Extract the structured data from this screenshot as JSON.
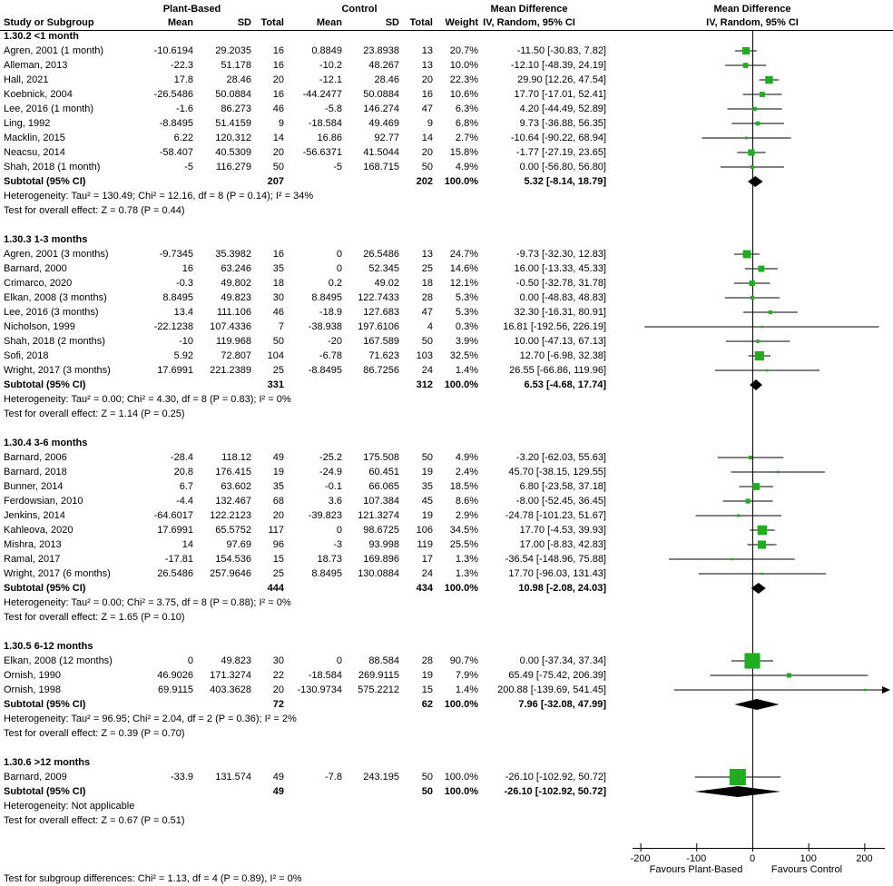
{
  "header": {
    "study_col": "Study or Subgroup",
    "group1_label": "Plant-Based",
    "group2_label": "Control",
    "col_mean": "Mean",
    "col_sd": "SD",
    "col_total": "Total",
    "col_weight": "Weight",
    "md_line1": "Mean Difference",
    "md_line2": "IV, Random, 95% CI",
    "plot_line1": "Mean Difference",
    "plot_line2": "IV, Random, 95% CI"
  },
  "axis": {
    "ticks": [
      -200,
      -100,
      0,
      100,
      200
    ],
    "favours_left": "Favours Plant-Based",
    "favours_right": "Favours Control"
  },
  "footer": {
    "subgroup_test": "Test for subgroup differences: Chi² = 1.13, df = 4 (P = 0.89), I² = 0%"
  },
  "colors": {
    "marker_green": "#21ac21",
    "diamond_black": "#000000",
    "line_black": "#000000"
  },
  "chart_data": {
    "type": "forest",
    "effect_measure": "Mean Difference, IV, Random, 95% CI",
    "x_ticks": [
      -200,
      -100,
      0,
      100,
      200
    ],
    "groups": [
      {
        "title": "1.30.2 <1 month",
        "rows": [
          {
            "study": "Agren, 2001 (1 month)",
            "pb_mean": "-10.6194",
            "pb_sd": "29.2035",
            "pb_total": 16,
            "c_mean": "0.8849",
            "c_sd": "23.8938",
            "c_total": 13,
            "weight": 20.7,
            "md": -11.5,
            "lo": -30.83,
            "hi": 7.82
          },
          {
            "study": "Alleman, 2013",
            "pb_mean": "-22.3",
            "pb_sd": "51.178",
            "pb_total": 16,
            "c_mean": "-10.2",
            "c_sd": "48.267",
            "c_total": 13,
            "weight": 10.0,
            "md": -12.1,
            "lo": -48.39,
            "hi": 24.19
          },
          {
            "study": "Hall, 2021",
            "pb_mean": "17.8",
            "pb_sd": "28.46",
            "pb_total": 20,
            "c_mean": "-12.1",
            "c_sd": "28.46",
            "c_total": 20,
            "weight": 22.3,
            "md": 29.9,
            "lo": 12.26,
            "hi": 47.54
          },
          {
            "study": "Koebnick, 2004",
            "pb_mean": "-26.5486",
            "pb_sd": "50.0884",
            "pb_total": 16,
            "c_mean": "-44.2477",
            "c_sd": "50.0884",
            "c_total": 16,
            "weight": 10.6,
            "md": 17.7,
            "lo": -17.01,
            "hi": 52.41
          },
          {
            "study": "Lee, 2016 (1 month)",
            "pb_mean": "-1.6",
            "pb_sd": "86.273",
            "pb_total": 46,
            "c_mean": "-5.8",
            "c_sd": "146.274",
            "c_total": 47,
            "weight": 6.3,
            "md": 4.2,
            "lo": -44.49,
            "hi": 52.89
          },
          {
            "study": "Ling, 1992",
            "pb_mean": "-8.8495",
            "pb_sd": "51.4159",
            "pb_total": 9,
            "c_mean": "-18.584",
            "c_sd": "49.469",
            "c_total": 9,
            "weight": 6.8,
            "md": 9.73,
            "lo": -36.88,
            "hi": 56.35
          },
          {
            "study": "Macklin, 2015",
            "pb_mean": "6.22",
            "pb_sd": "120.312",
            "pb_total": 14,
            "c_mean": "16.86",
            "c_sd": "92.77",
            "c_total": 14,
            "weight": 2.7,
            "md": -10.64,
            "lo": -90.22,
            "hi": 68.94
          },
          {
            "study": "Neacsu, 2014",
            "pb_mean": "-58.407",
            "pb_sd": "40.5309",
            "pb_total": 20,
            "c_mean": "-56.6371",
            "c_sd": "41.5044",
            "c_total": 20,
            "weight": 15.8,
            "md": -1.77,
            "lo": -27.19,
            "hi": 23.65
          },
          {
            "study": "Shah, 2018 (1 month)",
            "pb_mean": "-5",
            "pb_sd": "116.279",
            "pb_total": 50,
            "c_mean": "-5",
            "c_sd": "168.715",
            "c_total": 50,
            "weight": 4.9,
            "md": 0.0,
            "lo": -56.8,
            "hi": 56.8
          }
        ],
        "subtotal": {
          "label": "Subtotal (95% CI)",
          "pb_total": 207,
          "c_total": 202,
          "weight": 100.0,
          "md": 5.32,
          "lo": -8.14,
          "hi": 18.79
        },
        "heterogeneity": "Heterogeneity: Tau² = 130.49; Chi² = 12.16, df = 8 (P = 0.14); I² = 34%",
        "overall_test": "Test for overall effect: Z = 0.78 (P = 0.44)"
      },
      {
        "title": "1.30.3 1-3 months",
        "rows": [
          {
            "study": "Agren, 2001 (3 months)",
            "pb_mean": "-9.7345",
            "pb_sd": "35.3982",
            "pb_total": 16,
            "c_mean": "0",
            "c_sd": "26.5486",
            "c_total": 13,
            "weight": 24.7,
            "md": -9.73,
            "lo": -32.3,
            "hi": 12.83
          },
          {
            "study": "Barnard, 2000",
            "pb_mean": "16",
            "pb_sd": "63.246",
            "pb_total": 35,
            "c_mean": "0",
            "c_sd": "52.345",
            "c_total": 25,
            "weight": 14.6,
            "md": 16.0,
            "lo": -13.33,
            "hi": 45.33
          },
          {
            "study": "Crimarco, 2020",
            "pb_mean": "-0.3",
            "pb_sd": "49.802",
            "pb_total": 18,
            "c_mean": "0.2",
            "c_sd": "49.02",
            "c_total": 18,
            "weight": 12.1,
            "md": -0.5,
            "lo": -32.78,
            "hi": 31.78
          },
          {
            "study": "Elkan, 2008 (3 months)",
            "pb_mean": "8.8495",
            "pb_sd": "49.823",
            "pb_total": 30,
            "c_mean": "8.8495",
            "c_sd": "122.7433",
            "c_total": 28,
            "weight": 5.3,
            "md": 0.0,
            "lo": -48.83,
            "hi": 48.83
          },
          {
            "study": "Lee, 2016 (3 months)",
            "pb_mean": "13.4",
            "pb_sd": "111.106",
            "pb_total": 46,
            "c_mean": "-18.9",
            "c_sd": "127.683",
            "c_total": 47,
            "weight": 5.3,
            "md": 32.3,
            "lo": -16.31,
            "hi": 80.91
          },
          {
            "study": "Nicholson, 1999",
            "pb_mean": "-22.1238",
            "pb_sd": "107.4336",
            "pb_total": 7,
            "c_mean": "-38.938",
            "c_sd": "197.6106",
            "c_total": 4,
            "weight": 0.3,
            "md": 16.81,
            "lo": -192.56,
            "hi": 226.19
          },
          {
            "study": "Shah, 2018 (2 months)",
            "pb_mean": "-10",
            "pb_sd": "119.968",
            "pb_total": 50,
            "c_mean": "-20",
            "c_sd": "167.589",
            "c_total": 50,
            "weight": 3.9,
            "md": 10.0,
            "lo": -47.13,
            "hi": 67.13
          },
          {
            "study": "Sofi, 2018",
            "pb_mean": "5.92",
            "pb_sd": "72.807",
            "pb_total": 104,
            "c_mean": "-6.78",
            "c_sd": "71.623",
            "c_total": 103,
            "weight": 32.5,
            "md": 12.7,
            "lo": -6.98,
            "hi": 32.38
          },
          {
            "study": "Wright, 2017 (3 months)",
            "pb_mean": "17.6991",
            "pb_sd": "221.2389",
            "pb_total": 25,
            "c_mean": "-8.8495",
            "c_sd": "86.7256",
            "c_total": 24,
            "weight": 1.4,
            "md": 26.55,
            "lo": -66.86,
            "hi": 119.96
          }
        ],
        "subtotal": {
          "label": "Subtotal (95% CI)",
          "pb_total": 331,
          "c_total": 312,
          "weight": 100.0,
          "md": 6.53,
          "lo": -4.68,
          "hi": 17.74
        },
        "heterogeneity": "Heterogeneity: Tau² = 0.00; Chi² = 4.30, df = 8 (P = 0.83); I² = 0%",
        "overall_test": "Test for overall effect: Z = 1.14 (P = 0.25)"
      },
      {
        "title": "1.30.4 3-6 months",
        "rows": [
          {
            "study": "Barnard, 2006",
            "pb_mean": "-28.4",
            "pb_sd": "118.12",
            "pb_total": 49,
            "c_mean": "-25.2",
            "c_sd": "175.508",
            "c_total": 50,
            "weight": 4.9,
            "md": -3.2,
            "lo": -62.03,
            "hi": 55.63
          },
          {
            "study": "Barnard, 2018",
            "pb_mean": "20.8",
            "pb_sd": "176.415",
            "pb_total": 19,
            "c_mean": "-24.9",
            "c_sd": "60.451",
            "c_total": 19,
            "weight": 2.4,
            "md": 45.7,
            "lo": -38.15,
            "hi": 129.55
          },
          {
            "study": "Bunner, 2014",
            "pb_mean": "6.7",
            "pb_sd": "63.602",
            "pb_total": 35,
            "c_mean": "-0.1",
            "c_sd": "66.065",
            "c_total": 35,
            "weight": 18.5,
            "md": 6.8,
            "lo": -23.58,
            "hi": 37.18
          },
          {
            "study": "Ferdowsian, 2010",
            "pb_mean": "-4.4",
            "pb_sd": "132.467",
            "pb_total": 68,
            "c_mean": "3.6",
            "c_sd": "107.384",
            "c_total": 45,
            "weight": 8.6,
            "md": -8.0,
            "lo": -52.45,
            "hi": 36.45
          },
          {
            "study": "Jenkins, 2014",
            "pb_mean": "-64.6017",
            "pb_sd": "122.2123",
            "pb_total": 20,
            "c_mean": "-39.823",
            "c_sd": "121.3274",
            "c_total": 19,
            "weight": 2.9,
            "md": -24.78,
            "lo": -101.23,
            "hi": 51.67
          },
          {
            "study": "Kahleova, 2020",
            "pb_mean": "17.6991",
            "pb_sd": "65.5752",
            "pb_total": 117,
            "c_mean": "0",
            "c_sd": "98.6725",
            "c_total": 106,
            "weight": 34.5,
            "md": 17.7,
            "lo": -4.53,
            "hi": 39.93
          },
          {
            "study": "Mishra, 2013",
            "pb_mean": "14",
            "pb_sd": "97.69",
            "pb_total": 96,
            "c_mean": "-3",
            "c_sd": "93.998",
            "c_total": 119,
            "weight": 25.5,
            "md": 17.0,
            "lo": -8.83,
            "hi": 42.83
          },
          {
            "study": "Ramal, 2017",
            "pb_mean": "-17.81",
            "pb_sd": "154.536",
            "pb_total": 15,
            "c_mean": "18.73",
            "c_sd": "169.896",
            "c_total": 17,
            "weight": 1.3,
            "md": -36.54,
            "lo": -148.96,
            "hi": 75.88
          },
          {
            "study": "Wright, 2017 (6 months)",
            "pb_mean": "26.5486",
            "pb_sd": "257.9646",
            "pb_total": 25,
            "c_mean": "8.8495",
            "c_sd": "130.0884",
            "c_total": 24,
            "weight": 1.3,
            "md": 17.7,
            "lo": -96.03,
            "hi": 131.43
          }
        ],
        "subtotal": {
          "label": "Subtotal (95% CI)",
          "pb_total": 444,
          "c_total": 434,
          "weight": 100.0,
          "md": 10.98,
          "lo": -2.08,
          "hi": 24.03
        },
        "heterogeneity": "Heterogeneity: Tau² = 0.00; Chi² = 3.75, df = 8 (P = 0.88); I² = 0%",
        "overall_test": "Test for overall effect: Z = 1.65 (P = 0.10)"
      },
      {
        "title": "1.30.5 6-12 months",
        "rows": [
          {
            "study": "Elkan, 2008 (12 months)",
            "pb_mean": "0",
            "pb_sd": "49.823",
            "pb_total": 30,
            "c_mean": "0",
            "c_sd": "88.584",
            "c_total": 28,
            "weight": 90.7,
            "md": 0.0,
            "lo": -37.34,
            "hi": 37.34
          },
          {
            "study": "Ornish, 1990",
            "pb_mean": "46.9026",
            "pb_sd": "171.3274",
            "pb_total": 22,
            "c_mean": "-18.584",
            "c_sd": "269.9115",
            "c_total": 19,
            "weight": 7.9,
            "md": 65.49,
            "lo": -75.42,
            "hi": 206.39
          },
          {
            "study": "Ornish, 1998",
            "pb_mean": "69.9115",
            "pb_sd": "403.3628",
            "pb_total": 20,
            "c_mean": "-130.9734",
            "c_sd": "575.2212",
            "c_total": 15,
            "weight": 1.4,
            "md": 200.88,
            "lo": -139.69,
            "hi": 541.45
          }
        ],
        "subtotal": {
          "label": "Subtotal (95% CI)",
          "pb_total": 72,
          "c_total": 62,
          "weight": 100.0,
          "md": 7.96,
          "lo": -32.08,
          "hi": 47.99
        },
        "heterogeneity": "Heterogeneity: Tau² = 96.95; Chi² = 2.04, df = 2 (P = 0.36); I² = 2%",
        "overall_test": "Test for overall effect: Z = 0.39 (P = 0.70)"
      },
      {
        "title": "1.30.6 >12 months",
        "rows": [
          {
            "study": "Barnard, 2009",
            "pb_mean": "-33.9",
            "pb_sd": "131.574",
            "pb_total": 49,
            "c_mean": "-7.8",
            "c_sd": "243.195",
            "c_total": 50,
            "weight": 100.0,
            "md": -26.1,
            "lo": -102.92,
            "hi": 50.72
          }
        ],
        "subtotal": {
          "label": "Subtotal (95% CI)",
          "pb_total": 49,
          "c_total": 50,
          "weight": 100.0,
          "md": -26.1,
          "lo": -102.92,
          "hi": 50.72
        },
        "heterogeneity": "Heterogeneity: Not applicable",
        "overall_test": "Test for overall effect: Z = 0.67 (P = 0.51)"
      }
    ]
  }
}
